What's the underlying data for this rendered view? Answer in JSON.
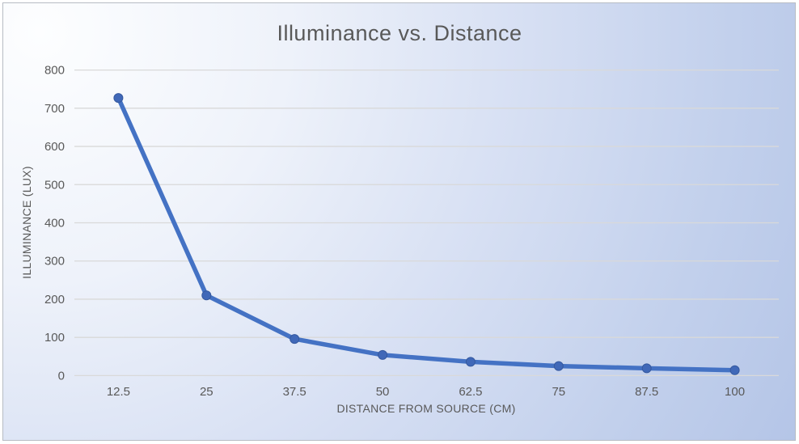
{
  "chart_data": {
    "type": "line",
    "title": "Illuminance vs. Distance",
    "xlabel": "DISTANCE FROM SOURCE (CM)",
    "ylabel": "ILLUMINANCE (LUX)",
    "categories": [
      12.5,
      25,
      37.5,
      50,
      62.5,
      75,
      87.5,
      100
    ],
    "category_labels": [
      "12.5",
      "25",
      "37.5",
      "50",
      "62.5",
      "75",
      "87.5",
      "100"
    ],
    "series": [
      {
        "name": "Illuminance",
        "values": [
          727,
          210,
          96,
          54,
          36,
          25,
          19,
          14
        ]
      }
    ],
    "ylim": [
      0,
      800
    ],
    "y_tick_step": 100,
    "y_tick_labels": [
      "0",
      "100",
      "200",
      "300",
      "400",
      "500",
      "600",
      "700",
      "800"
    ],
    "grid": true,
    "legend_position": "none",
    "colors": {
      "line": "#4472C4",
      "marker_fill": "#4068B8",
      "marker_stroke": "#35599F",
      "gridline": "#D9D9D9",
      "text": "#595959"
    }
  }
}
